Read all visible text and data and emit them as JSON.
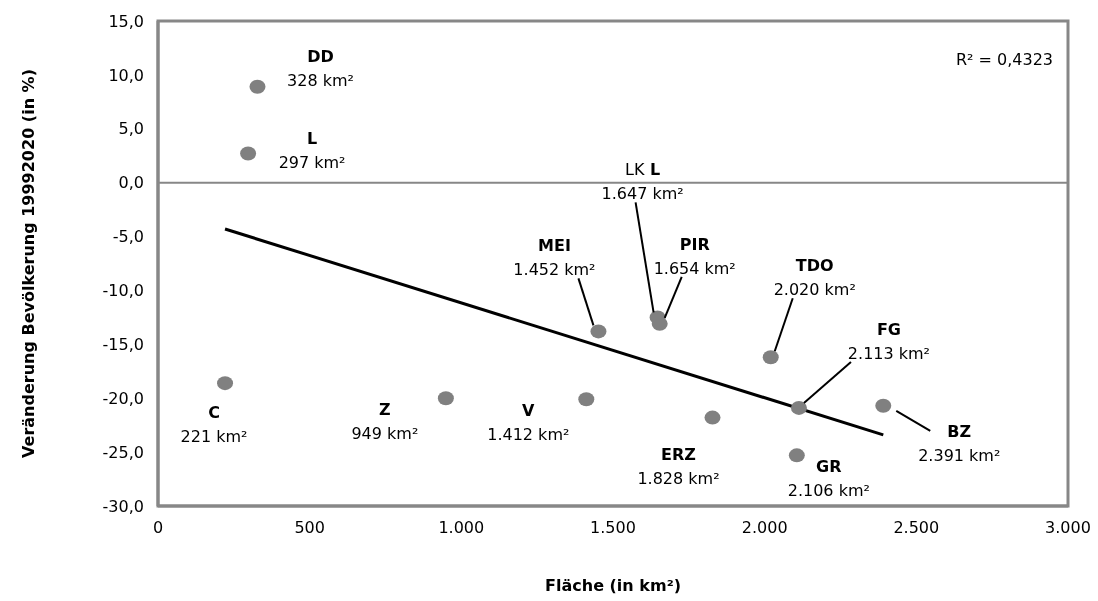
{
  "chart_data": {
    "type": "scatter",
    "xlabel": "Fläche (in km²)",
    "ylabel": "Veränderung Bevölkerung 19992020 (in %)",
    "xlim": [
      0,
      3000
    ],
    "ylim": [
      -30,
      15
    ],
    "xticks": [
      0,
      500,
      {
        "value": 1000,
        "label": "1.000"
      },
      {
        "value": 1500,
        "label": "1.500"
      },
      {
        "value": 2000,
        "label": "2.000"
      },
      {
        "value": 2500,
        "label": "2.500"
      },
      {
        "value": 3000,
        "label": "3.000"
      }
    ],
    "yticks": [
      {
        "value": -30,
        "label": "-30,0"
      },
      {
        "value": -25,
        "label": "-25,0"
      },
      {
        "value": -20,
        "label": "-20,0"
      },
      {
        "value": -15,
        "label": "-15,0"
      },
      {
        "value": -10,
        "label": "-10,0"
      },
      {
        "value": -5,
        "label": "-5,0"
      },
      {
        "value": 0,
        "label": "0,0"
      },
      {
        "value": 5,
        "label": "5,0"
      },
      {
        "value": 10,
        "label": "10,0"
      },
      {
        "value": 15,
        "label": "15,0"
      }
    ],
    "grid": false,
    "legend": false,
    "marker": "circle",
    "ref_lines": [
      {
        "axis": "y",
        "value": 0,
        "color": "#878787"
      }
    ],
    "series": [
      {
        "type": "scatter",
        "color": "#808080",
        "x": [
          328,
          297,
          221,
          949,
          1412,
          1452,
          1647,
          1654,
          2020,
          2113,
          2106,
          2391,
          1828
        ],
        "values": [
          8.9,
          2.7,
          -18.6,
          -20.0,
          -20.1,
          -13.8,
          -12.5,
          -13.1,
          -16.2,
          -20.9,
          -25.3,
          -20.7,
          -21.8
        ]
      },
      {
        "type": "line",
        "color": "#000000",
        "marker": "none",
        "x": [
          221,
          2391
        ],
        "values": [
          -4.3,
          -23.4
        ]
      }
    ],
    "annotations": [
      {
        "text": "DD\n328 km²",
        "x": 328,
        "y": 8.9
      },
      {
        "text": "L\n297 km²",
        "x": 297,
        "y": 2.7
      },
      {
        "text": "C\n221 km²",
        "x": 221,
        "y": -18.6
      },
      {
        "text": "Z\n949 km²",
        "x": 949,
        "y": -20.0
      },
      {
        "text": "V\n1.412 km²",
        "x": 1412,
        "y": -20.1
      },
      {
        "text": "MEI\n1.452 km²",
        "x": 1452,
        "y": -13.8
      },
      {
        "text": "LK L\n1.647 km²",
        "x": 1647,
        "y": -12.5
      },
      {
        "text": "PIR\n1.654 km²",
        "x": 1654,
        "y": -13.1
      },
      {
        "text": "TDO\n2.020 km²",
        "x": 2020,
        "y": -16.2
      },
      {
        "text": "FG\n2.113 km²",
        "x": 2113,
        "y": -20.9
      },
      {
        "text": "GR\n2.106 km²",
        "x": 2106,
        "y": -25.3
      },
      {
        "text": "BZ\n2.391 km²",
        "x": 2391,
        "y": -20.7
      },
      {
        "text": "ERZ\n1.828 km²",
        "x": 1828,
        "y": -21.8
      },
      "R² = 0,4323"
    ]
  }
}
